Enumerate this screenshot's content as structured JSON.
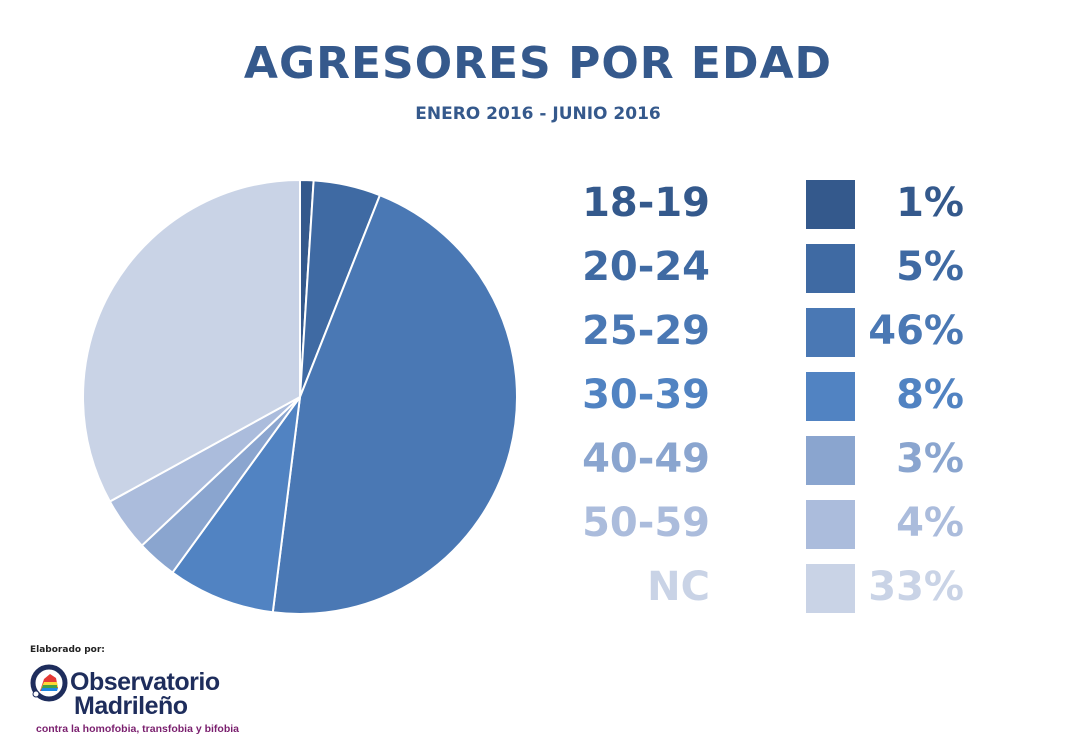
{
  "chart_data": {
    "type": "pie",
    "title": "AGRESORES POR EDAD",
    "subtitle": "ENERO 2016 - JUNIO 2016",
    "categories": [
      "18-19",
      "20-24",
      "25-29",
      "30-39",
      "40-49",
      "50-59",
      "NC"
    ],
    "values": [
      1,
      5,
      46,
      8,
      3,
      4,
      33
    ],
    "value_labels": [
      "1%",
      "5%",
      "46%",
      "8%",
      "3%",
      "4%",
      "33%"
    ],
    "colors": [
      "#34598c",
      "#3f6aa3",
      "#4a78b4",
      "#5183c2",
      "#8aa5cf",
      "#abbcdc",
      "#c9d3e6"
    ],
    "legend_placement": "right"
  },
  "credit": {
    "caption": "Elaborado por:",
    "logo_line1": "Observatorio",
    "logo_line2": "Madrileño",
    "logo_tagline": "contra la homofobia, transfobia y bifobia"
  }
}
